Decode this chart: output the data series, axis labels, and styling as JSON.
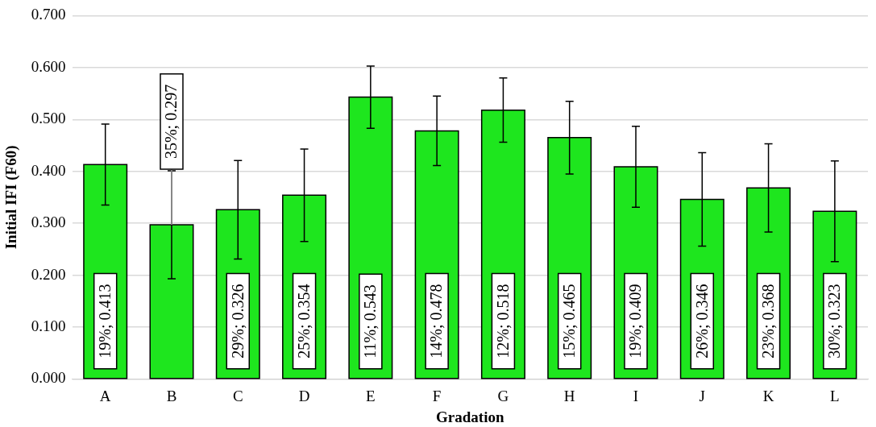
{
  "chart_data": {
    "type": "bar",
    "xlabel": "Gradation",
    "ylabel": "Initial IFI (F60)",
    "categories": [
      "A",
      "B",
      "C",
      "D",
      "E",
      "F",
      "G",
      "H",
      "I",
      "J",
      "K",
      "L"
    ],
    "values": [
      0.413,
      0.297,
      0.326,
      0.354,
      0.543,
      0.478,
      0.518,
      0.465,
      0.409,
      0.346,
      0.368,
      0.323
    ],
    "errors": [
      0.078,
      0.104,
      0.095,
      0.089,
      0.06,
      0.067,
      0.062,
      0.07,
      0.078,
      0.09,
      0.085,
      0.097
    ],
    "value_labels": [
      "19%; 0.413",
      "35%; 0.297",
      "29%; 0.326",
      "25%; 0.354",
      "11%; 0.543",
      "14%; 0.478",
      "12%; 0.518",
      "15%; 0.465",
      "19%; 0.409",
      "26%; 0.346",
      "23%; 0.368",
      "30%; 0.323"
    ],
    "color": "#1ee61e",
    "ylim": [
      0,
      0.7
    ],
    "yticks": [
      {
        "value": 0,
        "label": "0.000"
      },
      {
        "value": 0.1,
        "label": "0.100"
      },
      {
        "value": 0.2,
        "label": "0.200"
      },
      {
        "value": 0.3,
        "label": "0.300"
      },
      {
        "value": 0.4,
        "label": "0.400"
      },
      {
        "value": 0.5,
        "label": "0.500"
      },
      {
        "value": 0.6,
        "label": "0.600"
      },
      {
        "value": 0.7,
        "label": "0.700"
      }
    ],
    "grid": "y"
  }
}
